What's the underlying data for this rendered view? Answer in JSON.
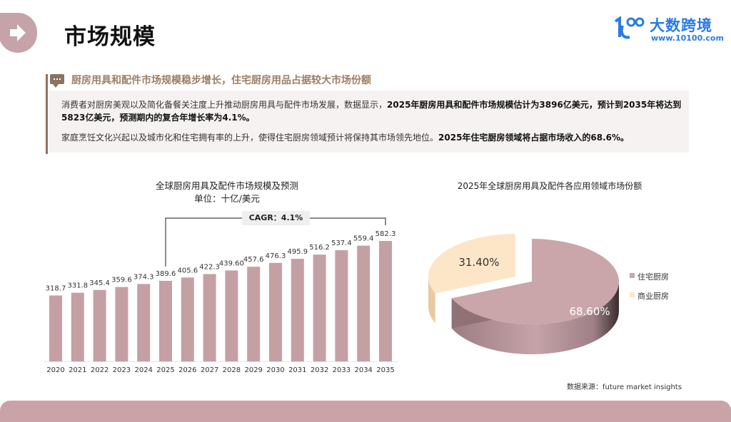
{
  "header": {
    "title": "市场规模",
    "icon": "arrow-right-icon"
  },
  "logo": {
    "name": "大数跨境",
    "url": "www.10100.com",
    "mark": "1O0",
    "color": "#2a7be4"
  },
  "section": {
    "subtitle": "厨房用具和配件市场规模稳步增长，住宅厨房用品占据较大市场份额",
    "p1_normal": "消费者对厨房美观以及简化备餐关注度上升推动厨房用具与配件市场发展，数据显示，",
    "p1_bold": "2025年厨房用具和配件市场规模估计为3896亿美元，预计到2035年将达到5823亿美元，预测期内的复合年增长率为4.1%。",
    "p2_normal": "家庭烹饪文化兴起以及城市化和住宅拥有率的上升，使得住宅厨房领域预计将保持其市场领先地位。",
    "p2_bold": "2025年住宅厨房领域将占据市场收入的68.6%。"
  },
  "chart_data": [
    {
      "type": "bar",
      "title": "全球厨房用具及配件市场规模及预测",
      "subtitle": "单位：十亿/美元",
      "categories": [
        "2020",
        "2021",
        "2022",
        "2023",
        "2024",
        "2025",
        "2026",
        "2027",
        "2028",
        "2029",
        "2030",
        "2031",
        "2032",
        "2033",
        "2034",
        "2035"
      ],
      "values": [
        318.7,
        331.8,
        345.4,
        359.6,
        374.3,
        389.6,
        405.6,
        422.3,
        439.6,
        457.6,
        476.3,
        495.9,
        516.2,
        537.4,
        559.4,
        582.3
      ],
      "data_labels": [
        "318.7",
        "331.8",
        "345.4",
        "359.6",
        "374.3",
        "389.6",
        "405.6",
        "422.3",
        "439.60",
        "457.6",
        "476.3",
        "495.9",
        "516.2",
        "537.4",
        "559.4",
        "582.3"
      ],
      "annotation": {
        "text": "CAGR：4.1%",
        "from": "2025",
        "to": "2035"
      },
      "ylim": [
        0,
        582.3
      ],
      "grid": false,
      "color": "#c4a0a5"
    },
    {
      "type": "pie",
      "style": "3d-exploded",
      "title": "2025年全球厨房用具及配件各应用领域市场份额",
      "slices": [
        {
          "name": "住宅厨房",
          "value": 68.6,
          "label": "68.60%",
          "color": "#caa6ab"
        },
        {
          "name": "商业厨房",
          "value": 31.4,
          "label": "31.40%",
          "color": "#fde6c8"
        }
      ],
      "legend": "right"
    }
  ],
  "source": "数据来源：future market insights"
}
